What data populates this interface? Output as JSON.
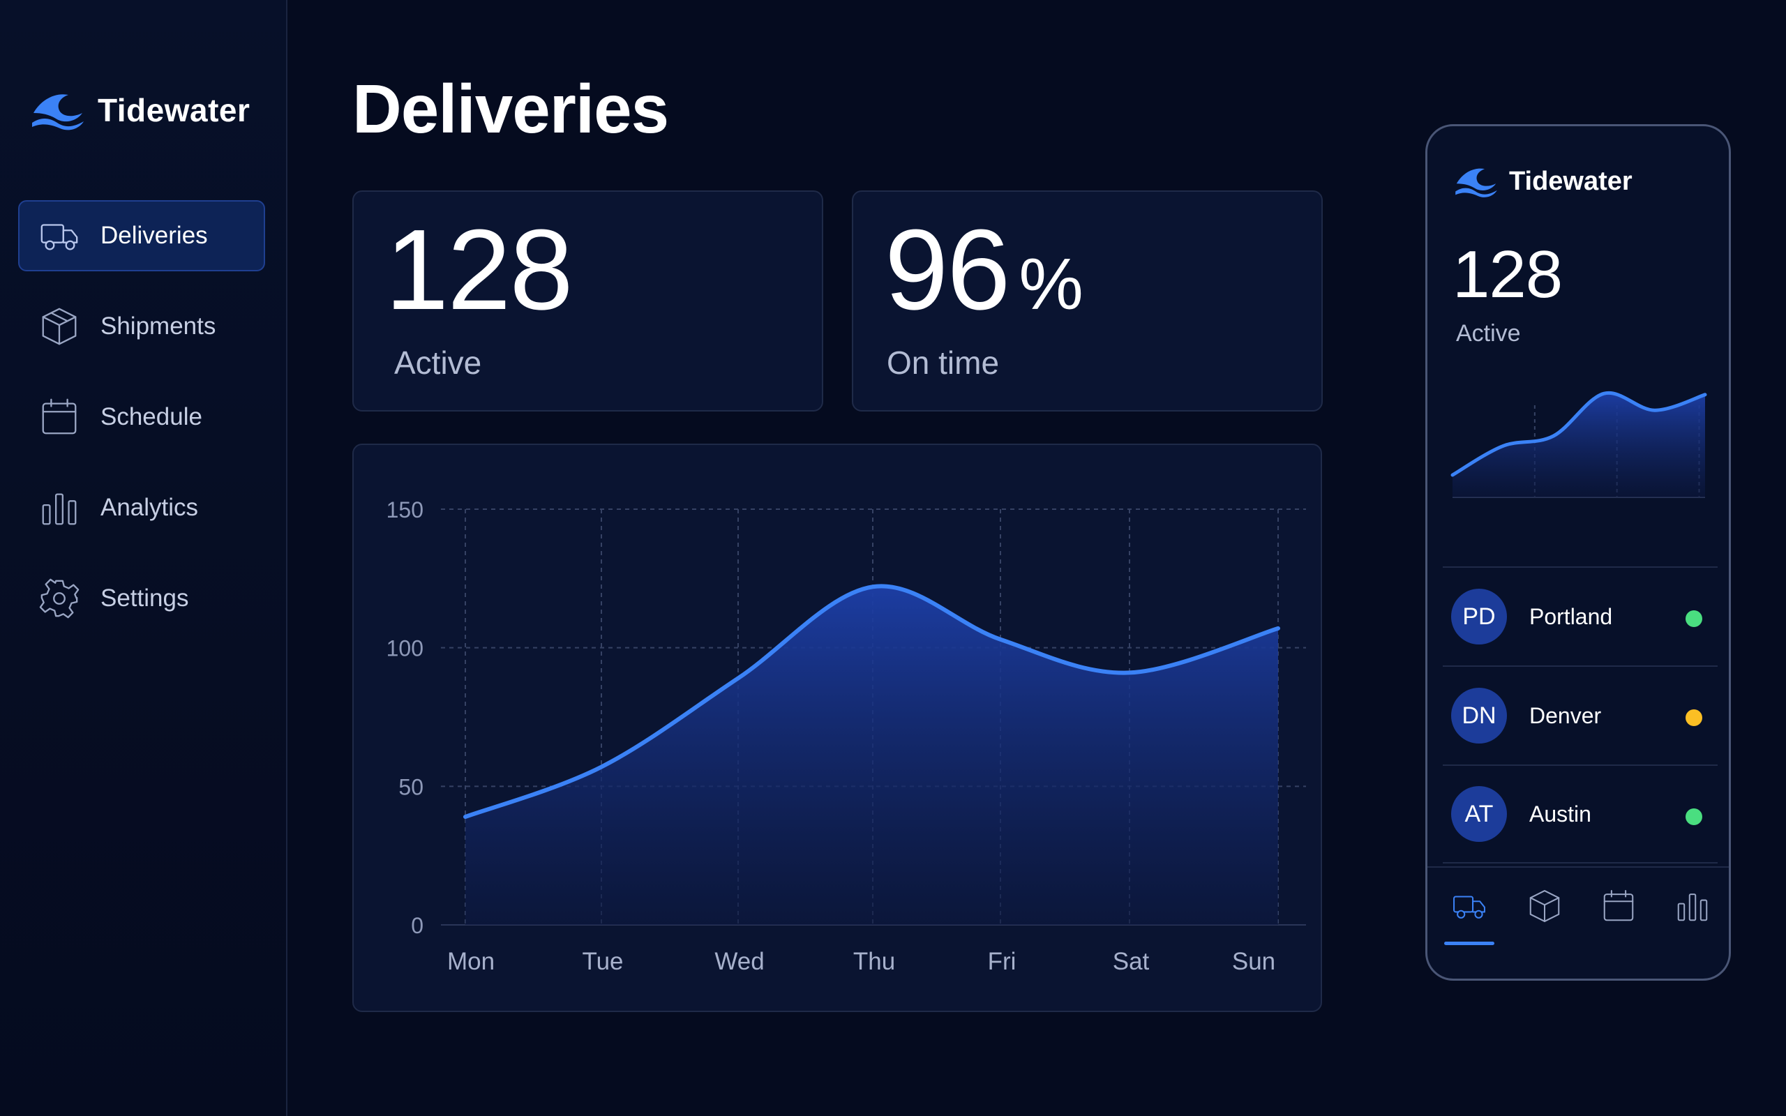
{
  "brand": {
    "name": "Tidewater",
    "logo_icon": "wave-logo-icon"
  },
  "sidebar": {
    "items": [
      {
        "label": "Deliveries",
        "icon": "truck-icon",
        "active": true
      },
      {
        "label": "Shipments",
        "icon": "box-icon",
        "active": false
      },
      {
        "label": "Schedule",
        "icon": "calendar-icon",
        "active": false
      },
      {
        "label": "Analytics",
        "icon": "bar-chart-icon",
        "active": false
      },
      {
        "label": "Settings",
        "icon": "gear-icon",
        "active": false
      }
    ]
  },
  "main": {
    "title": "Deliveries",
    "stats": [
      {
        "value": "128",
        "unit": "",
        "caption": "Active"
      },
      {
        "value": "96",
        "unit": "%",
        "caption": "On time"
      }
    ]
  },
  "chart_data": {
    "type": "area",
    "categories": [
      "Mon",
      "Tue",
      "Wed",
      "Thu",
      "Fri",
      "Sat",
      "Sun"
    ],
    "values": [
      39,
      57,
      89,
      122,
      103,
      91,
      107
    ],
    "ylim": [
      0,
      150
    ],
    "yticks": [
      0,
      50,
      100,
      150
    ],
    "title": "",
    "xlabel": "",
    "ylabel": "",
    "grid": true,
    "legend": "none"
  },
  "mobile": {
    "brand_name": "Tidewater",
    "stat_value": "128",
    "stat_caption": "Active",
    "sparkline": [
      20,
      46,
      55,
      93,
      78,
      92
    ],
    "locations": [
      {
        "initials": "PD",
        "city": "Portland",
        "status_color": "#4ade80"
      },
      {
        "initials": "DN",
        "city": "Denver",
        "status_color": "#fbbf24"
      },
      {
        "initials": "AT",
        "city": "Austin",
        "status_color": "#4ade80"
      }
    ],
    "tabs": [
      {
        "icon": "truck-icon",
        "active": true
      },
      {
        "icon": "box-icon",
        "active": false
      },
      {
        "icon": "calendar-icon",
        "active": false
      },
      {
        "icon": "bar-chart-icon",
        "active": false
      }
    ]
  },
  "colors": {
    "background": "#050b1f",
    "accent": "#3b82f6",
    "card": "#0a1431",
    "active_nav": "#0d2356"
  }
}
